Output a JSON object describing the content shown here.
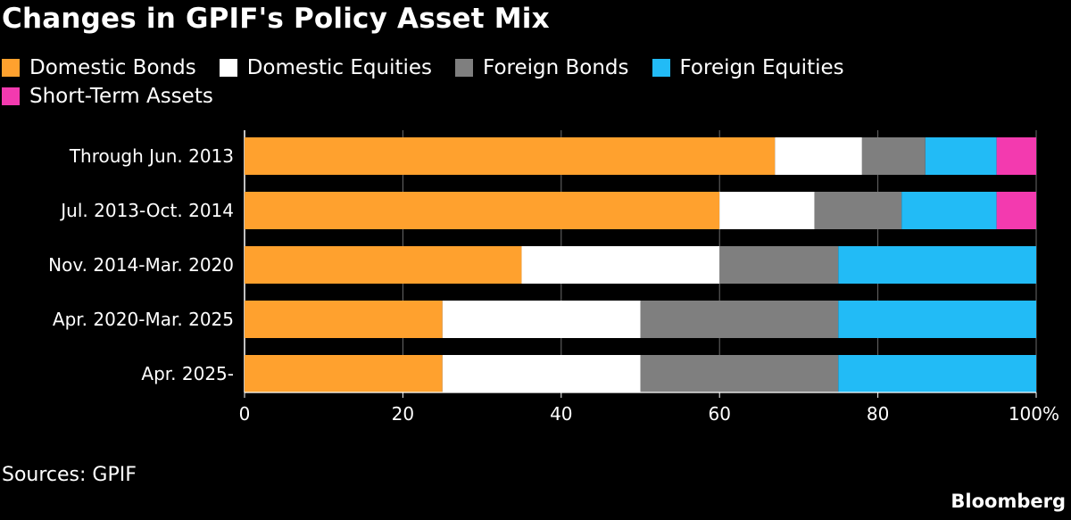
{
  "title": "Changes in GPIF's Policy Asset Mix",
  "source": "Sources: GPIF",
  "brand": "Bloomberg",
  "chart_data": {
    "type": "bar",
    "orientation": "horizontal",
    "stacked": true,
    "categories": [
      "Through Jun. 2013",
      "Jul. 2013-Oct. 2014",
      "Nov. 2014-Mar. 2020",
      "Apr. 2020-Mar. 2025",
      "Apr. 2025-"
    ],
    "series": [
      {
        "name": "Domestic Bonds",
        "color": "#ffa12e",
        "values": [
          67,
          60,
          35,
          25,
          25
        ]
      },
      {
        "name": "Domestic Equities",
        "color": "#ffffff",
        "values": [
          11,
          12,
          25,
          25,
          25
        ]
      },
      {
        "name": "Foreign Bonds",
        "color": "#7f7f7f",
        "values": [
          8,
          11,
          15,
          25,
          25
        ]
      },
      {
        "name": "Foreign Equities",
        "color": "#22bbf6",
        "values": [
          9,
          12,
          25,
          25,
          25
        ]
      },
      {
        "name": "Short-Term Assets",
        "color": "#f33aaf",
        "values": [
          5,
          5,
          0,
          0,
          0
        ]
      }
    ],
    "xlim": [
      0,
      100
    ],
    "xticks": [
      "0",
      "20",
      "40",
      "60",
      "80",
      "100%"
    ],
    "grid": true,
    "legend_position": "top"
  }
}
